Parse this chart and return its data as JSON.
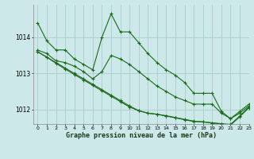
{
  "title": "Graphe pression niveau de la mer (hPa)",
  "background_color": "#cce8e8",
  "grid_color": "#aacccc",
  "line_color": "#1a6b1a",
  "xlim": [
    -0.5,
    23
  ],
  "ylim": [
    1011.6,
    1014.9
  ],
  "yticks": [
    1012,
    1013,
    1014
  ],
  "xticks": [
    0,
    1,
    2,
    3,
    4,
    5,
    6,
    7,
    8,
    9,
    10,
    11,
    12,
    13,
    14,
    15,
    16,
    17,
    18,
    19,
    20,
    21,
    22,
    23
  ],
  "series": [
    [
      1014.4,
      1013.9,
      1013.65,
      1013.65,
      1013.4,
      1013.25,
      1013.1,
      1014.0,
      1014.65,
      1014.15,
      1014.15,
      1013.85,
      1013.55,
      1013.3,
      1013.1,
      1012.95,
      1012.75,
      1012.45,
      1012.45,
      1012.45,
      1011.95,
      1011.75,
      1011.95,
      1012.15
    ],
    [
      1013.65,
      1013.55,
      1013.35,
      1013.3,
      1013.2,
      1013.05,
      1012.85,
      1013.05,
      1013.5,
      1013.4,
      1013.25,
      1013.05,
      1012.85,
      1012.65,
      1012.5,
      1012.35,
      1012.25,
      1012.15,
      1012.15,
      1012.15,
      1011.9,
      1011.75,
      1011.9,
      1012.1
    ],
    [
      1013.6,
      1013.45,
      1013.3,
      1013.15,
      1013.0,
      1012.85,
      1012.7,
      1012.55,
      1012.4,
      1012.25,
      1012.1,
      1011.97,
      1011.9,
      1011.87,
      1011.82,
      1011.77,
      1011.72,
      1011.67,
      1011.66,
      1011.63,
      1011.61,
      1011.59,
      1011.82,
      1012.07
    ],
    [
      1013.6,
      1013.45,
      1013.28,
      1013.12,
      1012.97,
      1012.82,
      1012.67,
      1012.52,
      1012.37,
      1012.22,
      1012.07,
      1011.97,
      1011.9,
      1011.87,
      1011.83,
      1011.78,
      1011.73,
      1011.68,
      1011.66,
      1011.63,
      1011.6,
      1011.57,
      1011.8,
      1012.05
    ]
  ]
}
